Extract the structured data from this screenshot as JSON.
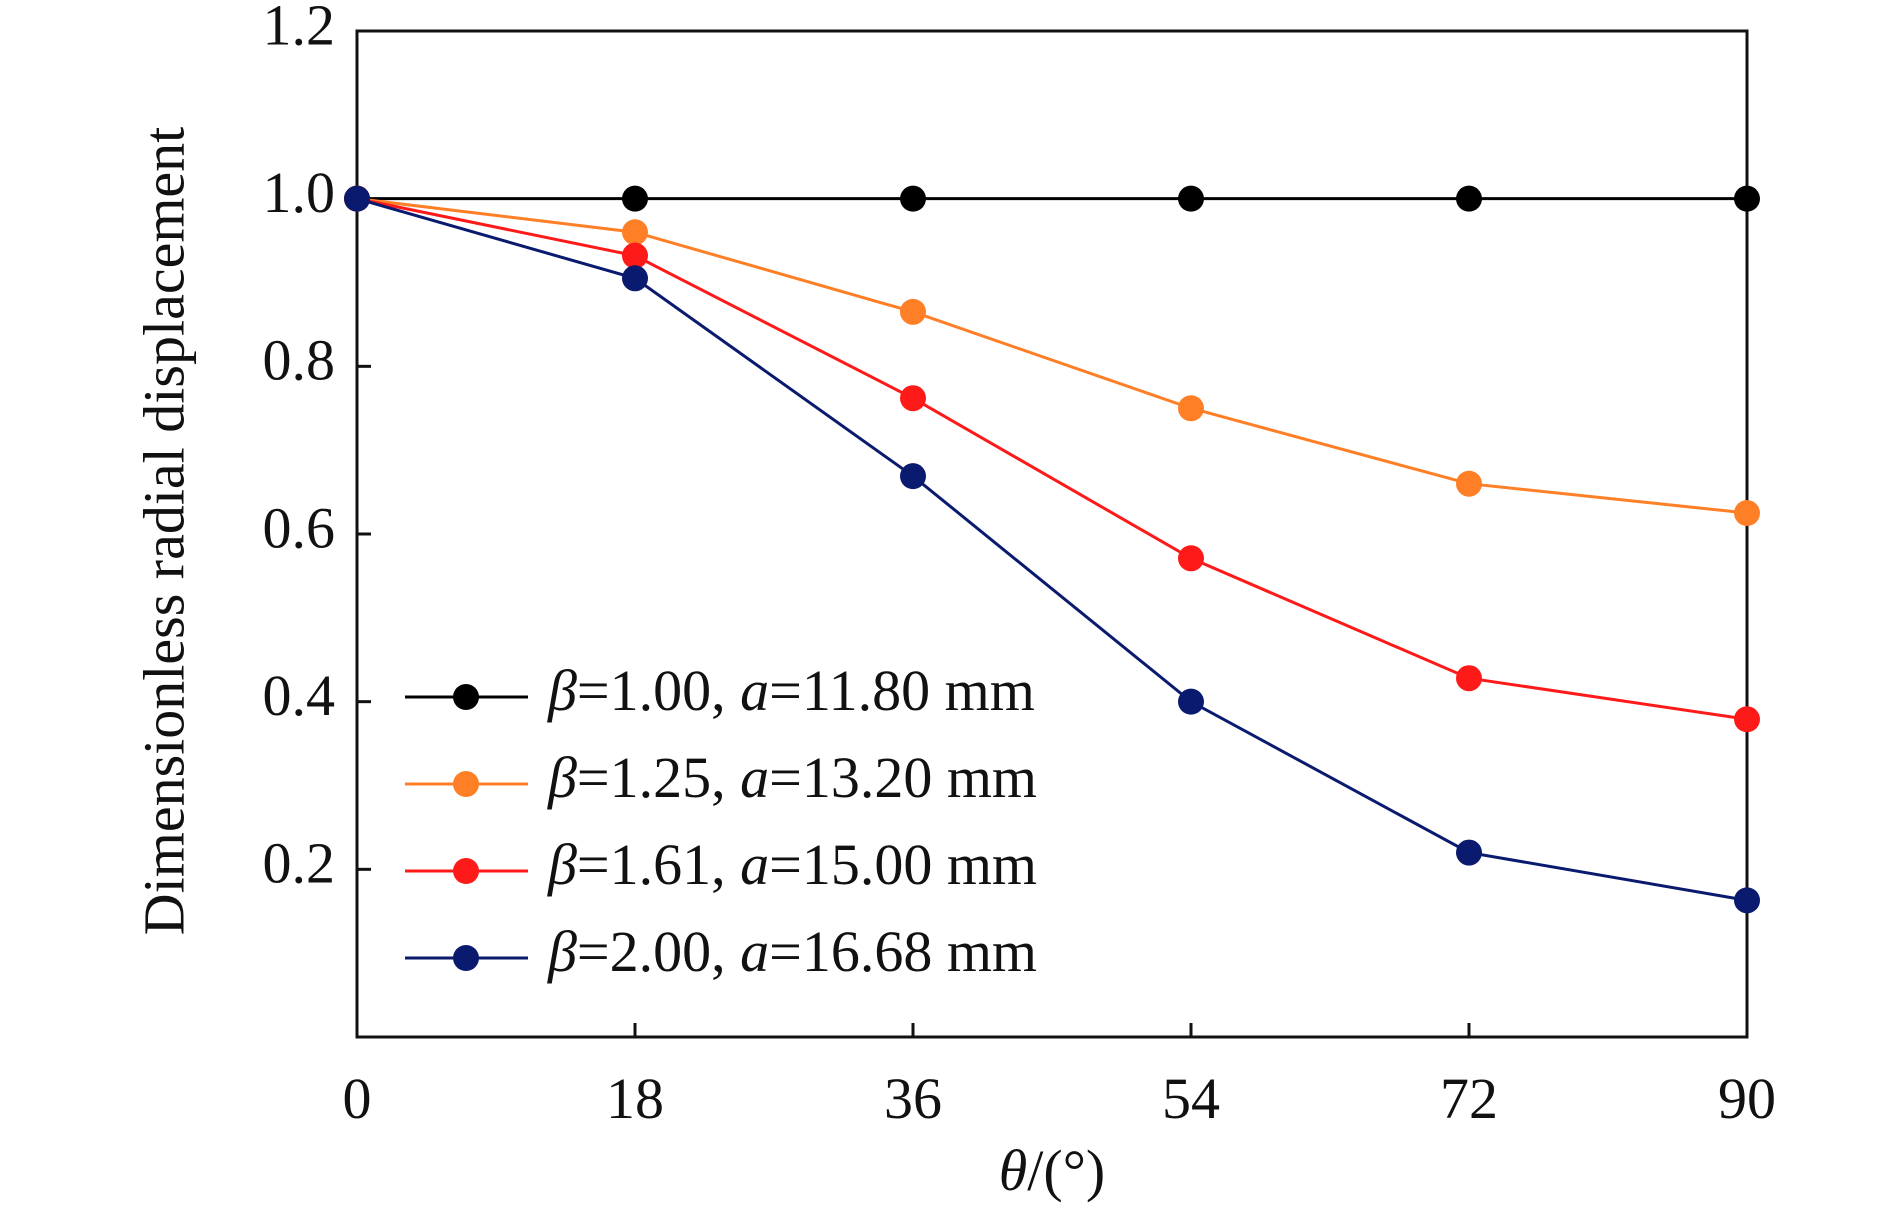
{
  "chart_data": {
    "type": "line",
    "title": "",
    "xlabel": {
      "symbol": "θ",
      "rest": "/(°)"
    },
    "ylabel": "Dimensionless radial displacement",
    "xlim": [
      0,
      90
    ],
    "ylim": [
      0,
      1.2
    ],
    "x_ticks": [
      0,
      18,
      36,
      54,
      72,
      90
    ],
    "x_tick_labels": [
      "0",
      "18",
      "36",
      "54",
      "72",
      "90"
    ],
    "y_ticks": [
      0.2,
      0.4,
      0.6,
      0.8,
      1.0,
      1.2
    ],
    "y_tick_labels": [
      "0.2",
      "0.4",
      "0.6",
      "0.8",
      "1.0",
      "1.2"
    ],
    "legend_position": "bottom-left",
    "x": [
      0,
      18,
      36,
      54,
      72,
      90
    ],
    "series": [
      {
        "name": "β=1.00, a=11.80 mm",
        "beta": "1.00",
        "a": "11.80 mm",
        "color": "#000000",
        "values": [
          1.0,
          1.0,
          1.0,
          1.0,
          1.0,
          1.0
        ]
      },
      {
        "name": "β=1.25, a=13.20 mm",
        "beta": "1.25",
        "a": "13.20 mm",
        "color": "#ff7f27",
        "values": [
          1.0,
          0.96,
          0.865,
          0.75,
          0.66,
          0.625
        ]
      },
      {
        "name": "β=1.61, a=15.00 mm",
        "beta": "1.61",
        "a": "15.00 mm",
        "color": "#ff1a1a",
        "values": [
          1.0,
          0.932,
          0.762,
          0.571,
          0.428,
          0.379
        ]
      },
      {
        "name": "β=2.00, a=16.68 mm",
        "beta": "2.00",
        "a": "16.68 mm",
        "color": "#0a1a6e",
        "values": [
          1.0,
          0.905,
          0.669,
          0.4,
          0.22,
          0.163
        ]
      }
    ]
  }
}
